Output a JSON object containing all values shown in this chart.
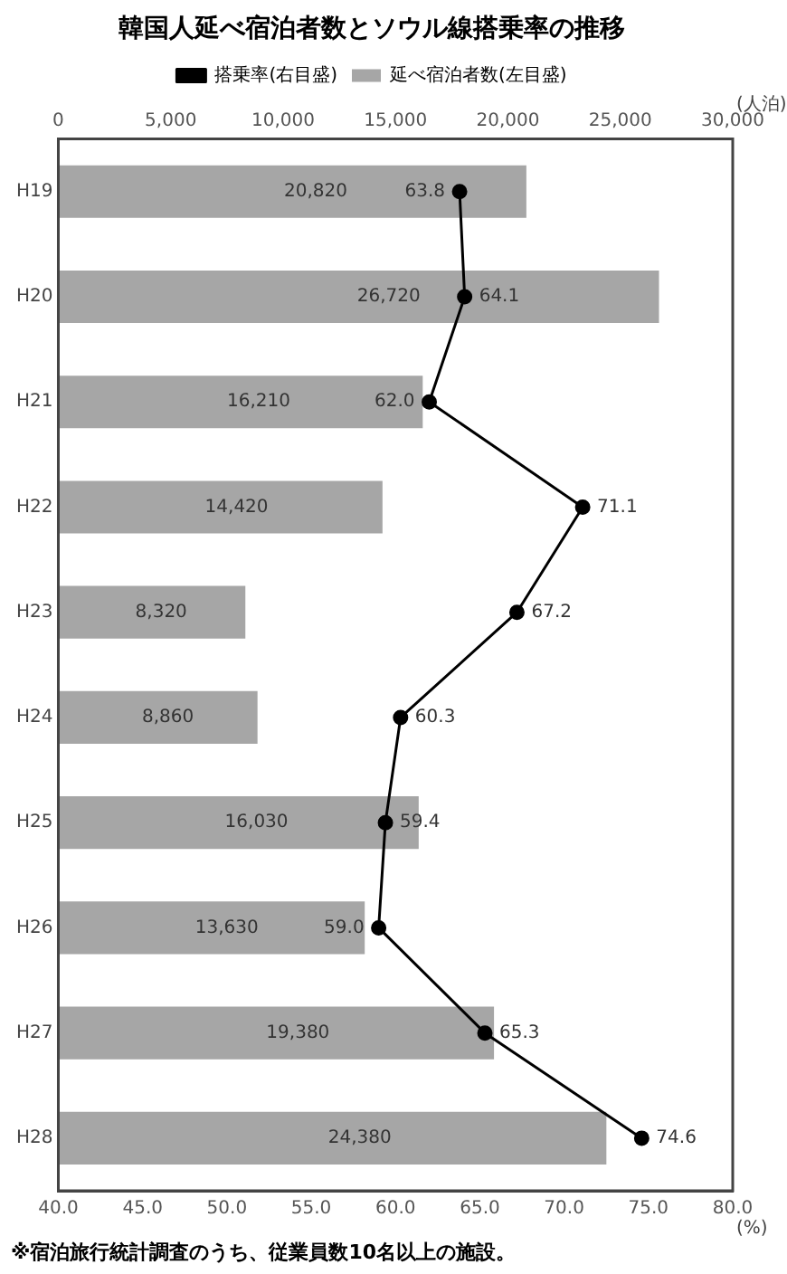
{
  "chart_data": {
    "type": "bar",
    "orientation": "horizontal",
    "title": "韓国人延べ宿泊者数とソウル線搭乗率の推移",
    "categories": [
      "H19",
      "H20",
      "H21",
      "H22",
      "H23",
      "H24",
      "H25",
      "H26",
      "H27",
      "H28"
    ],
    "series": [
      {
        "name": "延べ宿泊者数(左目盛)",
        "axis": "x2",
        "color": "#a6a6a6",
        "values": [
          20820,
          26720,
          16210,
          14420,
          8320,
          8860,
          16030,
          13630,
          19380,
          24380
        ],
        "value_labels": [
          "20,820",
          "26,720",
          "16,210",
          "14,420",
          "8,320",
          "8,860",
          "16,030",
          "13,630",
          "19,380",
          "24,380"
        ]
      },
      {
        "name": "搭乗率(右目盛)",
        "type": "line",
        "color": "#000000",
        "marker": "circle",
        "values": [
          63.8,
          64.1,
          62.0,
          71.1,
          67.2,
          60.3,
          59.4,
          59.0,
          65.3,
          74.6
        ],
        "value_labels": [
          "63.8",
          "64.1",
          "62.0",
          "71.1",
          "67.2",
          "60.3",
          "59.4",
          "59.0",
          "65.3",
          "74.6"
        ]
      }
    ],
    "x2label": "(人泊)",
    "xlabel": "(%)",
    "x2lim": [
      0,
      30000
    ],
    "x2ticks": [
      0,
      {
        "value": 5000,
        "label": "5,000"
      },
      {
        "value": 10000,
        "label": "10,000"
      },
      {
        "value": 15000,
        "label": "15,000"
      },
      {
        "value": 20000,
        "label": "20,000"
      },
      {
        "value": 25000,
        "label": "25,000"
      },
      {
        "value": 30000,
        "label": "30,000"
      }
    ],
    "xlim": [
      40,
      80
    ],
    "xticks": [
      {
        "value": 40,
        "label": "40.0"
      },
      {
        "value": 45,
        "label": "45.0"
      },
      {
        "value": 50,
        "label": "50.0"
      },
      {
        "value": 55,
        "label": "55.0"
      },
      {
        "value": 60,
        "label": "60.0"
      },
      {
        "value": 65,
        "label": "65.0"
      },
      {
        "value": 70,
        "label": "70.0"
      },
      {
        "value": 75,
        "label": "75.0"
      },
      {
        "value": 80,
        "label": "80.0"
      }
    ],
    "annotations": [
      "※宿泊旅行統計調査のうち、従業員数10名以上の施設。"
    ],
    "grid": false,
    "legend": "top"
  }
}
